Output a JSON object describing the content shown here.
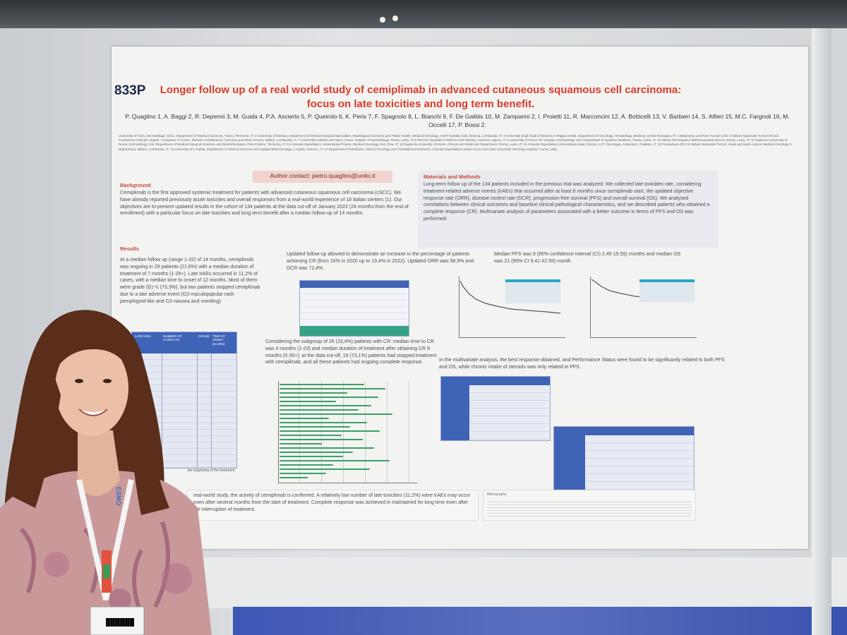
{
  "poster": {
    "code": "833P",
    "title": "Longer follow up of a real world study of cemiplimab in advanced cutaneous squamous cell carcinoma: focus on late toxicities and long term benefit.",
    "authors": "P. Quaglino 1, A. Baggi 2, R. Depenni 3, M. Guida 4, P.A. Ascierto 5, P. Queirolo 6, K. Peris 7, F. Spagnolo 8, L. Bianchi 9, F. De Galitiis 10, M. Zamparini 2, I. Proietti 11, R. Marconcini 12, A. Botticelli 13, V. Barbieri 14, S. Alfieri 15, M.C. Fargnoli 16, M. Occelli 17, P. Bossi 2.",
    "affiliations": "University of Turin, Dermatologic Clinic, Department of Medical Sciences, Torino, Piemonte, IT; 2 University of Brescia, Department of Medical Surgical Specialties, Radiological Sciences and Public Health, Medical Oncology, ASST Spedali Civili, Brescia, Lombardia, IT; 3 Università degli Studi di Modena e Reggio Emilia, Department of Oncology, Hematology, Modena, Emilia-Romagna, IT; 4 Melanoma and Rare Tumors Unit; 5 Istituto Nazionale Tumori IRCCS Fondazione Pascale, Napoli, Campania, IT; 6 IEO, Division of Melanoma, Sarcoma and Rare Tumors, Milano, Lombardia, IT; 7 Università Cattolica del Sacro Cuore, Institute of Dermatology, Roma, Lazio, IT; 8 IRCCS Ospedale Policlinico San Martino, Genova, Liguria, IT; 9 University of Rome Tor Vergata, Dermatology Unit, Department of Systems Medicine, Roma, Lazio, IT; 10 Istituto Dermopatico dell'Immacolata IRCCS, Roma, Lazio, IT; 11 Sapienza University of Rome, Dermatology Unit, Department of Medical-Surgical Sciences and Biotechnologies, Polo Pontino, Terracina, IT; 12 Azienda Ospedaliero Universitaria Pisana, Medical Oncology Unit, Pisa, IT; 13 Sapienza University of Rome, Clinical and Molecular Department, Roma, Lazio, IT; 14 Azienda Ospedaliera Universitaria Mater Domini, U.O. Oncologia, Catanzaro, Calabria, IT; 15 Fondazione IRCCS Istituto Nazionale Tumori, Head and Neck Cancer Medical Oncology 3 Department, Milano, Lombardia, IT; 16 University of L'Aquila, Department of Clinical Sciences and Applied Biotechnology, L'Aquila, Abruzzo, IT; 17 Department of Medicine, Clinical Oncology and Translational Research, Azienda Ospedaliera Santa Croce and Carle University Teaching Hospital, Cuneo, Italy.",
    "contact": "Author contact: pietro.quaglino@unito.it",
    "background": {
      "heading": "Background",
      "text": "Cemiplimab is the first approved systemic treatment for patients with advanced cutaneous squamous cell carcinoma (cSCC). We have already reported previously acute toxicities and overall responses from a real-world experience of 18 Italian centers (1). Our objectives are to present updated results in the cohort of 134 patients at the data cut-off of January 2022 (24 months from the end of enrollment) with a particular focus on late toxicities and long term benefit after a median follow-up of 14 months."
    },
    "methods": {
      "heading": "Materials and Methods",
      "text": "Long-term follow up of the 134 patients included in the previous trial was analyzed. We collected late toxicities rate, considering treatment-related adverse events (trAEs) that occurred after at least 6 months since cemiplimab start, the updated objective response rate (ORR), disease control rate (DCR), progression-free survival (PFS) and overall survival (OS). We analysed correlations between clinical outcomes and baseline clinical-pathological characteristics, and we described patients who obtained a complete response (CR). Multivariate analysis of parameters associated with a better outcome in terms of PFS and OS was performed."
    },
    "results": {
      "heading": "Results",
      "col1": "At a median follow up (range 1-32) of 14 months, cemiplimab was ongoing in 29 patients (21,6%) with a median duration of treatment of 7 months (1-29+). Late trAEs occurred in 11,2% of cases, with a median time to onset of 12 months. Most of them were grade (G) ½ (73,3%), but two patients stopped cemiplimab due to a late adverse event (G3 maculopapular rash pemphigoid-like and G3 nausea and vomiting).",
      "col2_top": "Updated follow-up allowed to demonstrate an increase in the percentage of patients achieving CR (from 16% in 2020 up to 19,4% in 2022). Updated ORR was 58,9% and DCR was 72,4%.",
      "col2_mid": "Considering the subgroup of 26 (19,4%) patients with CR: median time to CR was 4 months (1-23) and median duration of treatment after obtaining CR 8 months (0-35+); at the data cut-off, 19 (73,1%) patients had stopped treatment with cemiplimab, and all these patients had ongoing complete response.",
      "col3_top": "Median PFS was 9 (95% confidence interval (CI) 2.45-15.55) months and median OS was 21 (95% CI 9.41-32.59) month.",
      "col3_mid": "In the multivariate analysis, the best response obtained, and Performance Status were found to be significantly related to both PFS and OS, while chronic intake of steroids was only related to PFS.",
      "table_headers": [
        "LATE trAEs",
        "NUMBER OF CASES (%)",
        "GRADE",
        "TIME OF ONSET (months)"
      ],
      "table_caption": "the beginning of the treatment"
    },
    "conclusions": {
      "text": "real-world study, the activity of cemiplimab is confirmed. A relatively low number of late toxicities (11,2%) were trAEs may occur even after several months from the start of treatment. Complete response was achieved in maintained for long time even after the interruption of treatment."
    },
    "bibliography": {
      "heading": "Bibliography"
    }
  },
  "badge": {
    "lanyard_text": "ESMO"
  },
  "colors": {
    "title_red": "#d83c2c",
    "section_red": "#c54b3a",
    "table_blue": "#3f63b7",
    "bar_green": "#3aa066",
    "contact_pink": "#f2d3cd"
  }
}
